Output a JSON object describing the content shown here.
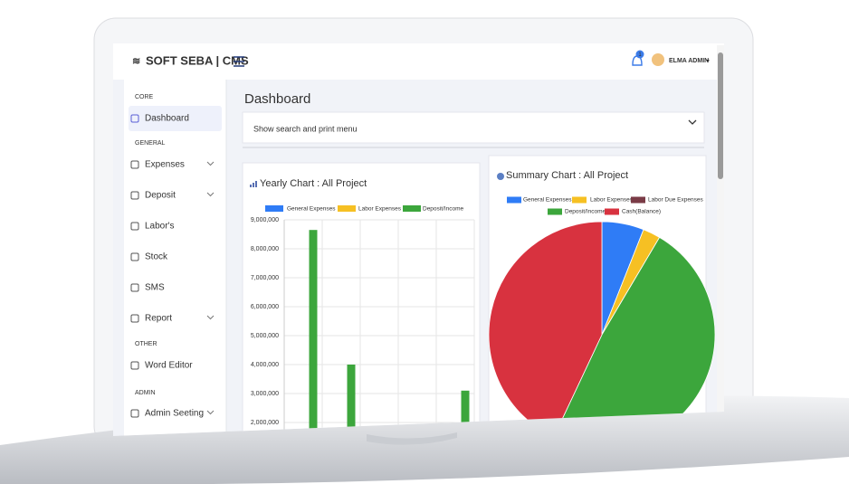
{
  "header": {
    "brand": "SOFT SEBA | CMS",
    "notification_count": "1",
    "user": "ELMA ADMIN"
  },
  "sidebar": {
    "sections": [
      {
        "heading": "CORE",
        "items": [
          "Dashboard"
        ]
      },
      {
        "heading": "GENERAL",
        "items": [
          "Expenses",
          "Deposit",
          "Labor's",
          "Stock",
          "SMS",
          "Report"
        ]
      },
      {
        "heading": "OTHER",
        "items": [
          "Word Editor"
        ]
      },
      {
        "heading": "ADMIN",
        "items": [
          "Admin Seeting"
        ]
      }
    ]
  },
  "main": {
    "title": "Dashboard",
    "search_toggle": "Show search and print menu"
  },
  "chart_data": [
    {
      "type": "bar",
      "title": "Yearly Chart : All Project",
      "categories": [
        null,
        null,
        null,
        null,
        null
      ],
      "series": [
        {
          "name": "General Expenses",
          "color": "#2f7cf6",
          "values": [
            null,
            null,
            null,
            null,
            null
          ]
        },
        {
          "name": "Labor Expenses",
          "color": "#f6c023",
          "values": [
            null,
            null,
            null,
            null,
            null
          ]
        },
        {
          "name": "Deposit/Income",
          "color": "#3ca63c",
          "values": [
            8650000,
            4000000,
            null,
            null,
            3100000
          ]
        }
      ],
      "ylim": [
        2000000,
        9000000
      ],
      "yticks": [
        {
          "value": 2000000,
          "label": "2,000,000"
        },
        {
          "value": 3000000,
          "label": "3,000,000"
        },
        {
          "value": 4000000,
          "label": "4,000,000"
        },
        {
          "value": 5000000,
          "label": "5,000,000"
        },
        {
          "value": 6000000,
          "label": "6,000,000"
        },
        {
          "value": 7000000,
          "label": "7,000,000"
        },
        {
          "value": 8000000,
          "label": "8,000,000"
        },
        {
          "value": 9000000,
          "label": "9,000,000"
        }
      ],
      "grid": true,
      "legend": "top"
    },
    {
      "type": "pie",
      "title": "Summary Chart : All Project",
      "categories": [
        "General Expenses",
        "Labor Expenses",
        "Labor Due Expenses",
        "Deposit/Income",
        "Cash(Balance)"
      ],
      "values": [
        6,
        2.5,
        0,
        48.5,
        43
      ],
      "colors": [
        "#2f7cf6",
        "#f6c023",
        "#7a3b46",
        "#3ca63c",
        "#d8323f"
      ],
      "legend": "top"
    }
  ]
}
